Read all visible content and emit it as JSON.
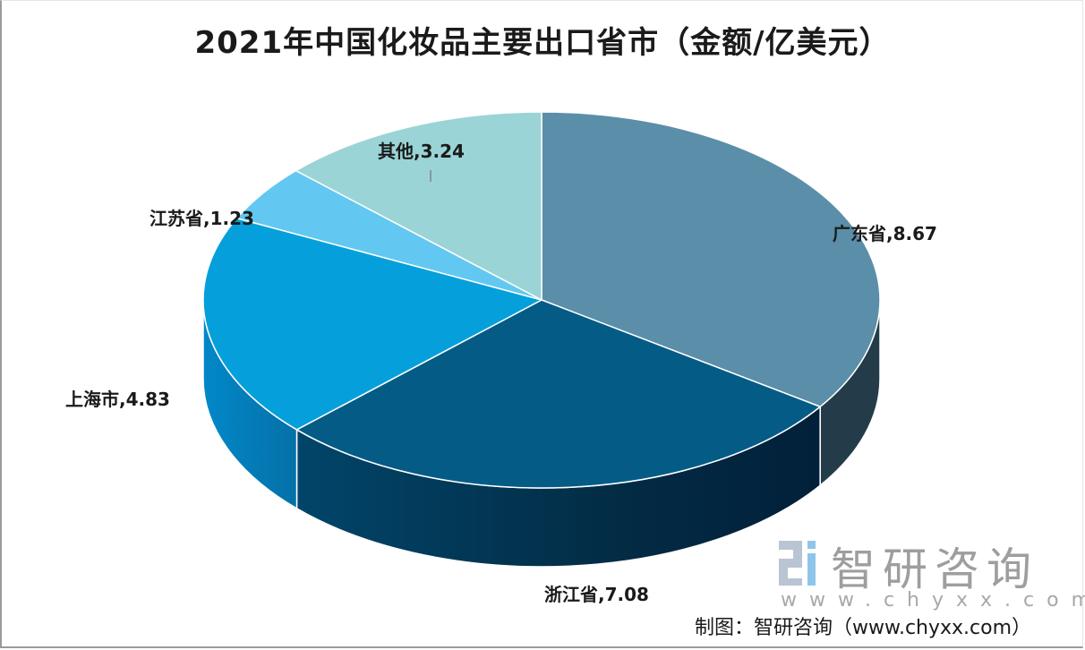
{
  "chart_data": {
    "type": "pie",
    "title": "2021年中国化妆品主要出口省市（金额/亿美元）",
    "unit": "亿美元",
    "categories": [
      "广东省",
      "浙江省",
      "上海市",
      "江苏省",
      "其他"
    ],
    "values": [
      8.67,
      7.08,
      4.83,
      1.23,
      3.24
    ],
    "colors": [
      "#5b8ea9",
      "#045c86",
      "#05a0db",
      "#62c8f1",
      "#9ad4d6"
    ],
    "data_labels": [
      "广东省,8.67",
      "浙江省,7.08",
      "上海市,4.83",
      "江苏省,1.23",
      "其他,3.24"
    ],
    "style": "3d-pie",
    "legend": "none"
  },
  "title": "2021年中国化妆品主要出口省市（金额/亿美元）",
  "labels": {
    "guangdong": "广东省,8.67",
    "zhejiang": "浙江省,7.08",
    "shanghai": "上海市,4.83",
    "jiangsu": "江苏省,1.23",
    "others": "其他,3.24"
  },
  "watermark": {
    "brand": "智研咨询",
    "url": "www.chyxx.com"
  },
  "source": "制图：智研咨询（www.chyxx.com）"
}
